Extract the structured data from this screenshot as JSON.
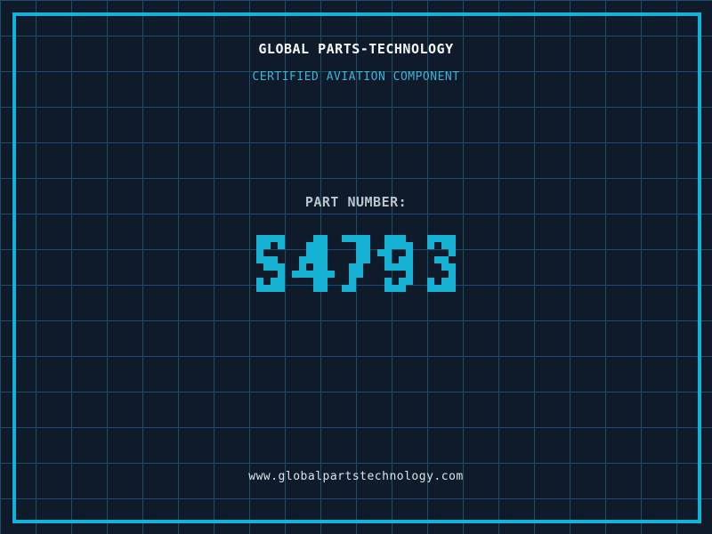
{
  "theme": {
    "bg": "#0f1a2b",
    "grid": "#17506a",
    "frame": "#10b3da",
    "title": "#f5f8fa",
    "subtitle": "#3eb3d7",
    "label": "#bac4cd",
    "digits": "#16b2d4",
    "footer": "#dce3e8"
  },
  "header": {
    "title": "GLOBAL PARTS-TECHNOLOGY",
    "subtitle": "CERTIFIED AVIATION COMPONENT"
  },
  "part": {
    "label": "PART NUMBER:",
    "number": "S4793"
  },
  "footer": {
    "url": "www.globalpartstechnology.com"
  }
}
